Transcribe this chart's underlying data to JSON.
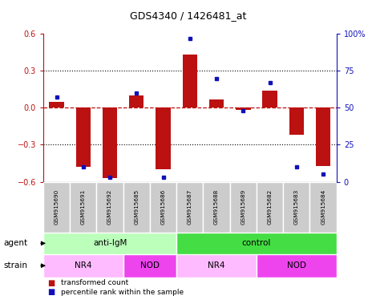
{
  "title": "GDS4340 / 1426481_at",
  "samples": [
    "GSM915690",
    "GSM915691",
    "GSM915692",
    "GSM915685",
    "GSM915686",
    "GSM915687",
    "GSM915688",
    "GSM915689",
    "GSM915682",
    "GSM915683",
    "GSM915684"
  ],
  "transformed_count": [
    0.05,
    -0.48,
    -0.57,
    0.1,
    -0.5,
    0.43,
    0.07,
    -0.02,
    0.14,
    -0.22,
    -0.47
  ],
  "percentile_rank": [
    57,
    10,
    3,
    60,
    3,
    97,
    70,
    48,
    67,
    10,
    5
  ],
  "bar_color": "#bb1111",
  "dot_color": "#1111bb",
  "ylim_left": [
    -0.6,
    0.6
  ],
  "ylim_right": [
    0,
    100
  ],
  "yticks_left": [
    -0.6,
    -0.3,
    0.0,
    0.3,
    0.6
  ],
  "yticks_right": [
    0,
    25,
    50,
    75,
    100
  ],
  "ytick_labels_right": [
    "0",
    "25",
    "50",
    "75",
    "100%"
  ],
  "agent_groups": [
    {
      "label": "anti-IgM",
      "start": 0,
      "end": 5,
      "color": "#bbffbb"
    },
    {
      "label": "control",
      "start": 5,
      "end": 11,
      "color": "#44dd44"
    }
  ],
  "strain_groups": [
    {
      "label": "NR4",
      "start": 0,
      "end": 3,
      "color": "#ffbbff"
    },
    {
      "label": "NOD",
      "start": 3,
      "end": 5,
      "color": "#ee44ee"
    },
    {
      "label": "NR4",
      "start": 5,
      "end": 8,
      "color": "#ffbbff"
    },
    {
      "label": "NOD",
      "start": 8,
      "end": 11,
      "color": "#ee44ee"
    }
  ],
  "tick_label_bg": "#cccccc",
  "legend_red_label": "transformed count",
  "legend_blue_label": "percentile rank within the sample",
  "agent_label": "agent",
  "strain_label": "strain",
  "bar_width": 0.55,
  "hline_dotted": [
    -0.3,
    0.3
  ],
  "hline_dashed": 0.0
}
